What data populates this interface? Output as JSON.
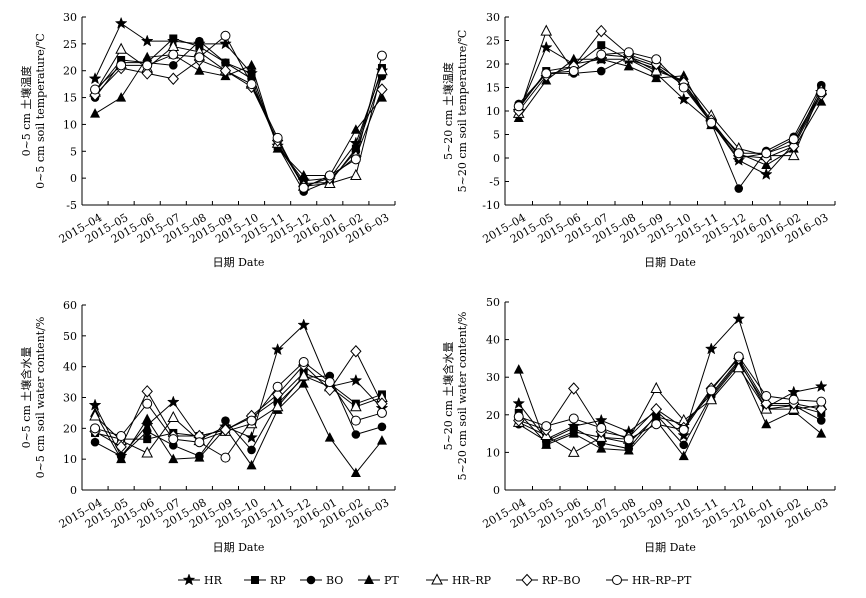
{
  "chart_data": [
    {
      "type": "line",
      "ylabel_cn": "0~5 cm 土壤温度",
      "ylabel_en": "0~5 cm soil temperature/℃",
      "xlabel": "日期 Date",
      "ylim": [
        -5,
        30
      ],
      "yticks": [
        "-5",
        "0",
        "5",
        "10",
        "15",
        "20",
        "25",
        "30"
      ],
      "categories": [
        "2015–04",
        "2015–05",
        "2015–06",
        "2015–07",
        "2015–08",
        "2015–09",
        "2015–10",
        "2015–11",
        "2015–12",
        "2016–01",
        "2016–02",
        "2016–03"
      ],
      "series": [
        {
          "name": "HR",
          "marker": "star",
          "values": [
            18.5,
            28.8,
            25.5,
            25.5,
            25.0,
            25.0,
            19.5,
            6.0,
            -0.5,
            0.0,
            6.5,
            20.0
          ]
        },
        {
          "name": "RP",
          "marker": "square",
          "values": [
            16.0,
            22.0,
            21.5,
            26.0,
            24.5,
            21.5,
            19.5,
            6.0,
            -1.0,
            -0.8,
            5.5,
            20.5
          ]
        },
        {
          "name": "BO",
          "marker": "circle",
          "values": [
            15.0,
            21.5,
            21.5,
            21.0,
            25.5,
            21.5,
            18.5,
            6.0,
            -2.5,
            -0.5,
            5.0,
            19.0
          ]
        },
        {
          "name": "PT",
          "marker": "triangle",
          "values": [
            12.0,
            15.0,
            22.5,
            23.0,
            20.0,
            19.0,
            21.0,
            5.5,
            0.5,
            0.5,
            9.0,
            15.0
          ]
        },
        {
          "name": "HR–RP",
          "marker": "triangle-open",
          "values": [
            16.0,
            24.0,
            20.5,
            24.5,
            23.5,
            20.0,
            17.5,
            6.5,
            -1.5,
            -1.0,
            0.5,
            20.0
          ]
        },
        {
          "name": "RP–BO",
          "marker": "diamond-open",
          "values": [
            15.5,
            20.5,
            19.5,
            18.5,
            22.0,
            20.0,
            17.0,
            7.0,
            -1.5,
            0.0,
            4.0,
            16.5
          ]
        },
        {
          "name": "HR–RP–PT",
          "marker": "circle-open",
          "values": [
            16.5,
            21.0,
            21.0,
            23.0,
            22.5,
            26.5,
            17.5,
            7.5,
            -1.8,
            0.5,
            3.5,
            22.8
          ]
        }
      ]
    },
    {
      "type": "line",
      "ylabel_cn": "5~20 cm 土壤温度",
      "ylabel_en": "5~20 cm soil temperature/℃",
      "xlabel": "日期 Date",
      "ylim": [
        -10,
        30
      ],
      "yticks": [
        "-10",
        "-5",
        "0",
        "5",
        "10",
        "15",
        "20",
        "25",
        "30"
      ],
      "categories": [
        "2015–04",
        "2015–05",
        "2015–06",
        "2015–07",
        "2015–08",
        "2015–09",
        "2015–10",
        "2015–11",
        "2015–12",
        "2016–01",
        "2016–02",
        "2016–03"
      ],
      "series": [
        {
          "name": "HR",
          "marker": "star",
          "values": [
            10.0,
            23.5,
            20.0,
            21.0,
            21.0,
            18.0,
            12.5,
            7.5,
            -0.5,
            -3.5,
            3.0,
            14.0
          ]
        },
        {
          "name": "RP",
          "marker": "square",
          "values": [
            10.5,
            18.5,
            19.5,
            24.0,
            21.0,
            19.0,
            16.0,
            7.5,
            0.0,
            1.0,
            3.0,
            15.0
          ]
        },
        {
          "name": "BO",
          "marker": "circle",
          "values": [
            11.5,
            18.0,
            18.0,
            18.5,
            21.5,
            19.5,
            15.5,
            7.5,
            -6.5,
            1.5,
            4.5,
            15.5
          ]
        },
        {
          "name": "PT",
          "marker": "triangle",
          "values": [
            8.5,
            16.5,
            21.0,
            21.0,
            19.5,
            17.0,
            17.5,
            7.0,
            1.0,
            -1.5,
            2.0,
            12.0
          ]
        },
        {
          "name": "HR–RP",
          "marker": "triangle-open",
          "values": [
            9.5,
            27.0,
            18.5,
            22.0,
            21.5,
            18.5,
            16.5,
            9.0,
            2.0,
            0.5,
            0.5,
            14.5
          ]
        },
        {
          "name": "RP–BO",
          "marker": "diamond-open",
          "values": [
            10.0,
            17.5,
            19.5,
            27.0,
            22.0,
            20.0,
            16.0,
            8.0,
            0.5,
            0.0,
            2.5,
            13.5
          ]
        },
        {
          "name": "HR–RP–PT",
          "marker": "circle-open",
          "values": [
            11.0,
            18.0,
            18.5,
            22.0,
            22.5,
            21.0,
            15.0,
            7.5,
            1.0,
            1.0,
            4.0,
            14.0
          ]
        }
      ]
    },
    {
      "type": "line",
      "ylabel_cn": "0~5 cm 土壤含水量",
      "ylabel_en": "0~5 cm soil water content/%",
      "xlabel": "日期 Date",
      "ylim": [
        0,
        60
      ],
      "yticks": [
        "0",
        "10",
        "20",
        "30",
        "40",
        "50",
        "60"
      ],
      "categories": [
        "2015–04",
        "2015–05",
        "2015–06",
        "2015–07",
        "2015–08",
        "2015–09",
        "2015–10",
        "2015–11",
        "2015–12",
        "2016–01",
        "2016–02",
        "2016–03"
      ],
      "series": [
        {
          "name": "HR",
          "marker": "star",
          "values": [
            27.5,
            11.0,
            21.0,
            28.5,
            16.5,
            20.5,
            17.0,
            45.5,
            53.5,
            33.5,
            35.5,
            26.5
          ]
        },
        {
          "name": "RP",
          "marker": "square",
          "values": [
            18.5,
            16.5,
            16.5,
            18.5,
            17.5,
            19.5,
            23.5,
            29.5,
            38.0,
            34.5,
            28.0,
            31.0
          ]
        },
        {
          "name": "BO",
          "marker": "circle",
          "values": [
            15.5,
            11.0,
            19.0,
            14.5,
            11.0,
            22.5,
            13.0,
            28.0,
            36.5,
            37.0,
            18.0,
            20.5
          ]
        },
        {
          "name": "PT",
          "marker": "triangle",
          "values": [
            25.0,
            10.0,
            23.0,
            10.0,
            10.5,
            20.0,
            8.0,
            26.0,
            34.5,
            17.0,
            5.5,
            16.0
          ]
        },
        {
          "name": "HR–RP",
          "marker": "triangle-open",
          "values": [
            24.0,
            16.0,
            12.0,
            23.5,
            16.0,
            19.0,
            21.5,
            27.0,
            37.0,
            33.5,
            27.0,
            30.0
          ]
        },
        {
          "name": "RP–BO",
          "marker": "diamond-open",
          "values": [
            19.0,
            14.0,
            32.0,
            17.5,
            17.5,
            19.5,
            24.0,
            31.0,
            40.5,
            32.5,
            45.0,
            28.0
          ]
        },
        {
          "name": "HR–RP–PT",
          "marker": "circle-open",
          "values": [
            20.0,
            17.5,
            28.0,
            16.5,
            15.5,
            10.5,
            22.5,
            33.5,
            41.5,
            35.0,
            22.5,
            25.0
          ]
        }
      ]
    },
    {
      "type": "line",
      "ylabel_cn": "5~20 cm 土壤含水量",
      "ylabel_en": "5~20 cm soil water content/%",
      "xlabel": "日期 Date",
      "ylim": [
        0,
        50
      ],
      "yticks": [
        "0",
        "10",
        "20",
        "30",
        "40",
        "50"
      ],
      "categories": [
        "2015–04",
        "2015–05",
        "2015–06",
        "2015–07",
        "2015–08",
        "2015–09",
        "2015–10",
        "2015–11",
        "2015–12",
        "2016–01",
        "2016–02",
        "2016–03"
      ],
      "series": [
        {
          "name": "HR",
          "marker": "star",
          "values": [
            23.0,
            13.5,
            17.0,
            18.5,
            15.5,
            21.0,
            14.5,
            37.5,
            45.5,
            22.0,
            26.0,
            27.5
          ]
        },
        {
          "name": "RP",
          "marker": "square",
          "values": [
            20.5,
            12.5,
            15.5,
            14.0,
            12.5,
            19.5,
            17.5,
            25.5,
            34.5,
            21.5,
            22.5,
            20.5
          ]
        },
        {
          "name": "BO",
          "marker": "circle",
          "values": [
            17.5,
            13.0,
            16.5,
            12.5,
            11.0,
            20.0,
            12.0,
            25.0,
            34.0,
            22.5,
            22.5,
            18.5
          ]
        },
        {
          "name": "PT",
          "marker": "triangle",
          "values": [
            32.0,
            12.0,
            15.0,
            11.0,
            10.5,
            18.5,
            9.0,
            24.5,
            33.5,
            17.5,
            21.0,
            15.0
          ]
        },
        {
          "name": "HR–RP",
          "marker": "triangle-open",
          "values": [
            18.0,
            14.5,
            10.0,
            14.0,
            13.5,
            27.0,
            18.5,
            24.0,
            32.5,
            21.5,
            21.5,
            22.5
          ]
        },
        {
          "name": "RP–BO",
          "marker": "diamond-open",
          "values": [
            18.5,
            16.0,
            27.0,
            15.5,
            14.0,
            21.5,
            16.5,
            27.0,
            35.0,
            23.0,
            23.0,
            21.5
          ]
        },
        {
          "name": "HR–RP–PT",
          "marker": "circle-open",
          "values": [
            19.5,
            17.0,
            19.0,
            16.5,
            13.5,
            17.5,
            16.0,
            26.5,
            35.5,
            25.0,
            24.0,
            23.5
          ]
        }
      ]
    }
  ]
}
